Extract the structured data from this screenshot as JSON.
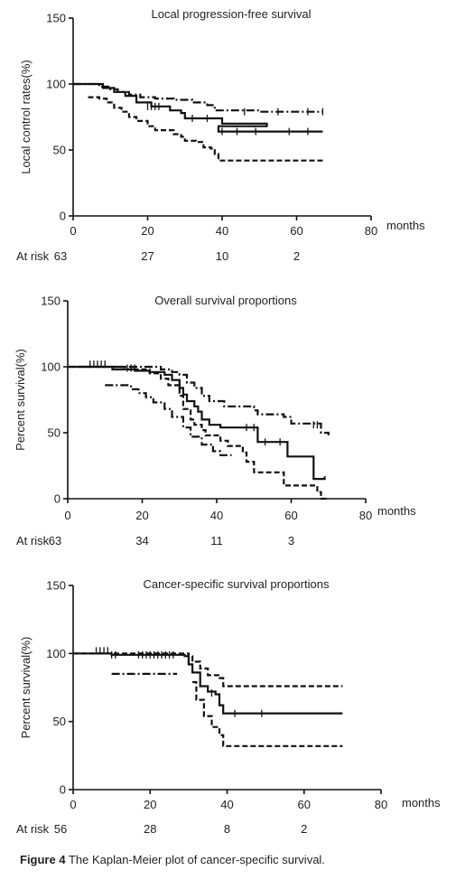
{
  "caption": {
    "label": "Figure 4",
    "text": "The Kaplan-Meier plot of cancer-specific survival."
  },
  "chart_data": [
    {
      "type": "line",
      "title": "Local progression-free survival",
      "xlabel": "months",
      "ylabel": "Local control rates(%)",
      "xlim": [
        0,
        80
      ],
      "ylim": [
        0,
        150
      ],
      "xticks": [
        0,
        20,
        40,
        60,
        80
      ],
      "yticks": [
        0,
        50,
        100,
        150
      ],
      "grid": false,
      "legend": "none",
      "at_risk": {
        "label": "At risk",
        "times": [
          0,
          20,
          40,
          60
        ],
        "values": [
          "63",
          "27",
          "10",
          "2"
        ]
      },
      "series": [
        {
          "style": "dashdot",
          "points": [
            [
              0,
              100
            ],
            [
              5,
              100
            ],
            [
              7,
              98
            ],
            [
              10,
              96
            ],
            [
              12,
              94
            ],
            [
              15,
              92
            ],
            [
              18,
              90
            ],
            [
              22,
              89
            ],
            [
              27,
              88
            ],
            [
              32,
              86
            ],
            [
              36,
              84
            ],
            [
              38,
              80
            ],
            [
              50,
              79
            ],
            [
              67,
              79
            ]
          ],
          "censors": [
            [
              46,
              79
            ],
            [
              55,
              79
            ],
            [
              63,
              79
            ],
            [
              67,
              79
            ]
          ]
        },
        {
          "style": "solid",
          "points": [
            [
              0,
              100
            ],
            [
              5,
              100
            ],
            [
              8,
              97
            ],
            [
              11,
              94
            ],
            [
              14,
              91
            ],
            [
              17,
              86
            ],
            [
              21,
              83
            ],
            [
              26,
              80
            ],
            [
              29,
              78
            ],
            [
              30,
              74
            ],
            [
              40,
              70
            ],
            [
              52,
              68
            ],
            [
              39,
              64
            ],
            [
              67,
              64
            ]
          ],
          "censors": [
            [
              20,
              83
            ],
            [
              21,
              83
            ],
            [
              22,
              83
            ],
            [
              23,
              83
            ],
            [
              32,
              74
            ],
            [
              36,
              74
            ],
            [
              40,
              64
            ],
            [
              44,
              64
            ],
            [
              49,
              64
            ],
            [
              58,
              64
            ],
            [
              63,
              64
            ]
          ]
        },
        {
          "style": "dashed",
          "points": [
            [
              4,
              90
            ],
            [
              7,
              89
            ],
            [
              9,
              86
            ],
            [
              11,
              82
            ],
            [
              13,
              79
            ],
            [
              15,
              75
            ],
            [
              17,
              72
            ],
            [
              20,
              68
            ],
            [
              22,
              65
            ],
            [
              27,
              62
            ],
            [
              29,
              60
            ],
            [
              30,
              57
            ],
            [
              33,
              56
            ],
            [
              35,
              52
            ],
            [
              37,
              51
            ],
            [
              38,
              47
            ],
            [
              39,
              42
            ],
            [
              67,
              42
            ]
          ],
          "censors": []
        }
      ]
    },
    {
      "type": "line",
      "title": "Overall survival proportions",
      "xlabel": "months",
      "ylabel": "Percent survival(%)",
      "xlim": [
        0,
        80
      ],
      "ylim": [
        0,
        150
      ],
      "xticks": [
        0,
        20,
        40,
        60,
        80
      ],
      "yticks": [
        0,
        50,
        100,
        150
      ],
      "grid": false,
      "legend": "none",
      "at_risk": {
        "label": "At risk",
        "times": [
          0,
          20,
          40,
          60
        ],
        "values": [
          "63",
          "34",
          "11",
          "3"
        ]
      },
      "series": [
        {
          "style": "dashdot",
          "points": [
            [
              0,
              100
            ],
            [
              5,
              100
            ],
            [
              10,
              100
            ],
            [
              20,
              100
            ],
            [
              25,
              98
            ],
            [
              28,
              96
            ],
            [
              30,
              94
            ],
            [
              32,
              88
            ],
            [
              34,
              84
            ],
            [
              36,
              78
            ],
            [
              38,
              74
            ],
            [
              42,
              70
            ],
            [
              50,
              67
            ],
            [
              51,
              64
            ],
            [
              58,
              62
            ],
            [
              60,
              57
            ],
            [
              67,
              57
            ],
            [
              68,
              50
            ],
            [
              70,
              48
            ]
          ],
          "censors": [
            [
              66,
              56
            ],
            [
              67,
              56
            ]
          ]
        },
        {
          "style": "solid",
          "points": [
            [
              0,
              100
            ],
            [
              10,
              100
            ],
            [
              12,
              98
            ],
            [
              18,
              97
            ],
            [
              22,
              96
            ],
            [
              26,
              94
            ],
            [
              28,
              90
            ],
            [
              30,
              84
            ],
            [
              31,
              79
            ],
            [
              32,
              74
            ],
            [
              34,
              70
            ],
            [
              35,
              66
            ],
            [
              36,
              60
            ],
            [
              38,
              56
            ],
            [
              41,
              54
            ],
            [
              50,
              54
            ],
            [
              51,
              43
            ],
            [
              58,
              43
            ],
            [
              59,
              32
            ],
            [
              65,
              32
            ],
            [
              66,
              15
            ],
            [
              69,
              15
            ],
            [
              69,
              17
            ]
          ],
          "censors": [
            [
              6,
              102
            ],
            [
              7,
              102
            ],
            [
              8,
              102
            ],
            [
              9,
              102
            ],
            [
              10,
              102
            ],
            [
              16,
              99
            ],
            [
              17,
              99
            ],
            [
              18,
              99
            ],
            [
              48,
              54
            ],
            [
              50,
              54
            ],
            [
              53,
              43
            ],
            [
              57,
              43
            ]
          ]
        },
        {
          "style": "dashed",
          "points": [
            [
              3,
              100
            ],
            [
              5,
              100
            ],
            [
              15,
              98
            ],
            [
              22,
              95
            ],
            [
              25,
              91
            ],
            [
              27,
              86
            ],
            [
              30,
              78
            ],
            [
              31,
              68
            ],
            [
              33,
              60
            ],
            [
              34,
              56
            ],
            [
              36,
              52
            ],
            [
              37,
              48
            ],
            [
              41,
              44
            ],
            [
              43,
              40
            ],
            [
              47,
              35
            ],
            [
              48,
              28
            ],
            [
              50,
              20
            ],
            [
              56,
              20
            ],
            [
              58,
              10
            ],
            [
              66,
              10
            ],
            [
              67,
              5
            ],
            [
              68,
              0
            ],
            [
              70,
              0
            ]
          ],
          "censors": []
        },
        {
          "style": "dashdot",
          "points": [
            [
              10,
              86
            ],
            [
              16,
              86
            ],
            [
              17,
              83
            ],
            [
              19,
              80
            ],
            [
              21,
              77
            ],
            [
              23,
              73
            ],
            [
              26,
              68
            ],
            [
              28,
              62
            ],
            [
              31,
              54
            ],
            [
              33,
              47
            ],
            [
              36,
              41
            ],
            [
              39,
              36
            ],
            [
              41,
              33
            ],
            [
              44,
              33
            ]
          ],
          "censors": []
        }
      ]
    },
    {
      "type": "line",
      "title": "Cancer-specific survival proportions",
      "xlabel": "months",
      "ylabel": "Percent survival(%)",
      "xlim": [
        0,
        80
      ],
      "ylim": [
        0,
        150
      ],
      "xticks": [
        0,
        20,
        40,
        60,
        80
      ],
      "yticks": [
        0,
        50,
        100,
        150
      ],
      "grid": false,
      "legend": "none",
      "at_risk": {
        "label": "At risk",
        "times": [
          0,
          20,
          40,
          60
        ],
        "values": [
          "56",
          "28",
          "8",
          "2"
        ]
      },
      "series": [
        {
          "style": "dashed",
          "points": [
            [
              0,
              100
            ],
            [
              30,
              98
            ],
            [
              31,
              94
            ],
            [
              33,
              89
            ],
            [
              35,
              84
            ],
            [
              38,
              82
            ],
            [
              39,
              76
            ],
            [
              70,
              76
            ]
          ],
          "censors": []
        },
        {
          "style": "solid",
          "points": [
            [
              0,
              100
            ],
            [
              10,
              99
            ],
            [
              29,
              98
            ],
            [
              30,
              92
            ],
            [
              31,
              86
            ],
            [
              33,
              76
            ],
            [
              35,
              72
            ],
            [
              37,
              70
            ],
            [
              38,
              62
            ],
            [
              39,
              56
            ],
            [
              70,
              56
            ]
          ],
          "censors": [
            [
              6,
              102
            ],
            [
              7,
              102
            ],
            [
              8,
              102
            ],
            [
              9,
              102
            ],
            [
              10,
              99
            ],
            [
              11,
              99
            ],
            [
              17,
              99
            ],
            [
              18,
              99
            ],
            [
              19,
              99
            ],
            [
              20,
              99
            ],
            [
              21,
              99
            ],
            [
              22,
              99
            ],
            [
              23,
              99
            ],
            [
              24,
              99
            ],
            [
              25,
              99
            ],
            [
              26,
              99
            ],
            [
              36,
              71
            ],
            [
              42,
              56
            ],
            [
              49,
              56
            ]
          ]
        },
        {
          "style": "dashed",
          "points": [
            [
              31,
              79
            ],
            [
              32,
              66
            ],
            [
              34,
              54
            ],
            [
              36,
              46
            ],
            [
              38,
              40
            ],
            [
              39,
              32
            ],
            [
              70,
              32
            ]
          ],
          "censors": []
        },
        {
          "style": "dashdot",
          "points": [
            [
              10,
              85
            ],
            [
              27,
              85
            ]
          ],
          "censors": []
        }
      ]
    }
  ]
}
